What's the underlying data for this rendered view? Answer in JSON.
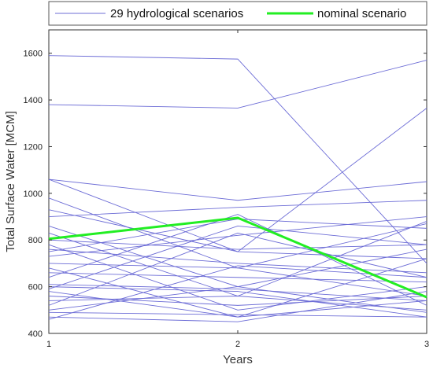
{
  "chart_data": {
    "type": "line",
    "xlabel": "Years",
    "ylabel": "Total Surface Water [MCM]",
    "xlim": [
      1,
      3
    ],
    "ylim": [
      400,
      1700
    ],
    "xticks": [
      1,
      2,
      3
    ],
    "yticks": [
      400,
      600,
      800,
      1000,
      1200,
      1400,
      1600
    ],
    "grid": false,
    "legend_position": "top",
    "legend": [
      "29 hydrological scenarios",
      "nominal scenario"
    ],
    "colors": {
      "scenarios": "#6c6cd6",
      "nominal": "#22ee22"
    },
    "x": [
      1,
      2,
      3
    ],
    "scenarios": [
      [
        1590,
        1575,
        700
      ],
      [
        1380,
        1365,
        1570
      ],
      [
        1060,
        970,
        1050
      ],
      [
        1060,
        750,
        1365
      ],
      [
        980,
        680,
        870
      ],
      [
        930,
        750,
        720
      ],
      [
        900,
        940,
        970
      ],
      [
        860,
        600,
        760
      ],
      [
        830,
        560,
        880
      ],
      [
        800,
        760,
        780
      ],
      [
        780,
        500,
        600
      ],
      [
        760,
        700,
        660
      ],
      [
        750,
        890,
        850
      ],
      [
        730,
        820,
        900
      ],
      [
        700,
        680,
        560
      ],
      [
        680,
        470,
        720
      ],
      [
        660,
        640,
        620
      ],
      [
        640,
        910,
        520
      ],
      [
        610,
        590,
        540
      ],
      [
        600,
        580,
        470
      ],
      [
        590,
        860,
        780
      ],
      [
        580,
        470,
        540
      ],
      [
        560,
        520,
        560
      ],
      [
        540,
        560,
        500
      ],
      [
        520,
        830,
        640
      ],
      [
        500,
        600,
        490
      ],
      [
        490,
        480,
        470
      ],
      [
        470,
        450,
        580
      ],
      [
        460,
        690,
        640
      ]
    ],
    "nominal": [
      805,
      895,
      555
    ]
  }
}
